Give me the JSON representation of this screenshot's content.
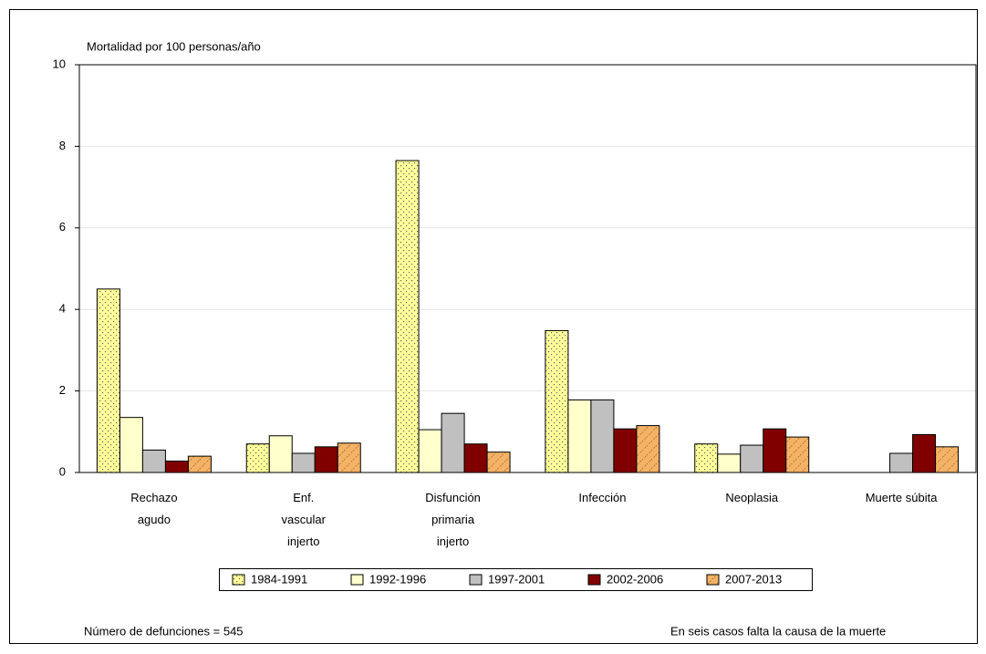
{
  "chart_data": {
    "type": "bar",
    "y_label": "Mortalidad por 100 personas/año",
    "categories": [
      "Rechazo\nagudo",
      "Enf.\nvascular\ninjerto",
      "Disfunción\nprimaria\ninjerto",
      "Infección",
      "Neoplasia",
      "Muerte súbita"
    ],
    "series": [
      {
        "name": "1984-1991",
        "color": "#ffff99",
        "pattern": "dots",
        "values": [
          4.5,
          0.7,
          7.65,
          3.48,
          0.7,
          0
        ]
      },
      {
        "name": "1992-1996",
        "color": "#ffffcc",
        "values": [
          1.35,
          0.9,
          1.05,
          1.78,
          0.45,
          0
        ]
      },
      {
        "name": "1997-2001",
        "color": "#c0c0c0",
        "values": [
          0.55,
          0.47,
          1.45,
          1.78,
          0.67,
          0.47
        ]
      },
      {
        "name": "2002-2006",
        "color": "#800000",
        "values": [
          0.28,
          0.63,
          0.7,
          1.07,
          1.07,
          0.93
        ]
      },
      {
        "name": "2007-2013",
        "color": "#f4b266",
        "pattern": "hatch",
        "values": [
          0.4,
          0.72,
          0.5,
          1.15,
          0.87,
          0.63
        ]
      }
    ],
    "ylim": [
      0,
      10
    ],
    "yticks": [
      0,
      2,
      4,
      6,
      8,
      10
    ],
    "grid": true,
    "notes": [
      "Número de defunciones = 545",
      "En seis casos falta la causa de la muerte"
    ]
  }
}
